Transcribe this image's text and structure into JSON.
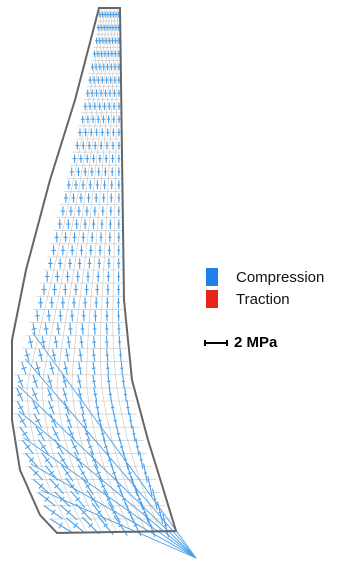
{
  "legend": {
    "items": [
      {
        "label": "Compression",
        "color": "#1f7fe6"
      },
      {
        "label": "Traction",
        "color": "#e8231a"
      }
    ]
  },
  "scale": {
    "label": "2 MPa"
  },
  "colors": {
    "outline": "#666666",
    "mesh": "#c4c4c4",
    "stress_compression": "#4aa0e8"
  }
}
